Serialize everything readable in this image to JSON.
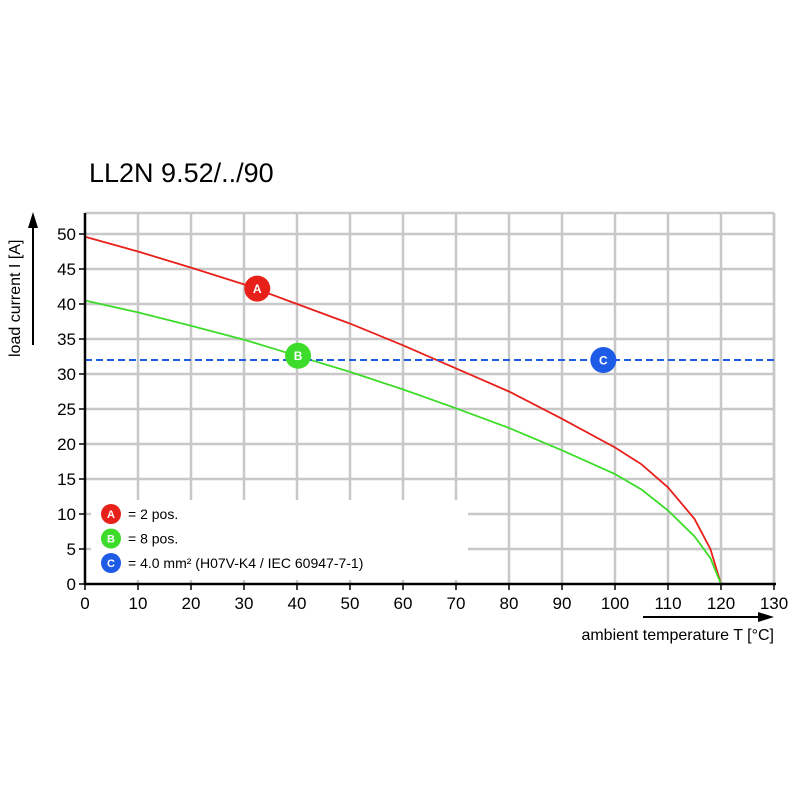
{
  "chart_data": {
    "type": "line",
    "title": "LL2N 9.52/../90",
    "xlabel": "ambient temperature T [°C]",
    "ylabel": "load current I [A]",
    "xlim": [
      0,
      130
    ],
    "ylim": [
      0,
      53
    ],
    "xticks": [
      0,
      10,
      20,
      30,
      40,
      50,
      60,
      70,
      80,
      90,
      100,
      110,
      120,
      130
    ],
    "yticks": [
      0,
      5,
      10,
      15,
      20,
      25,
      30,
      35,
      40,
      45,
      50
    ],
    "grid": true,
    "legend_position": "bottom-left",
    "series": [
      {
        "name": "= 2 pos.",
        "marker": "A",
        "color": "#e8201a",
        "style": "solid",
        "marker_at": [
          32.5,
          42.2
        ],
        "x": [
          0,
          10,
          20,
          30,
          40,
          50,
          60,
          70,
          80,
          90,
          100,
          105,
          110,
          115,
          118,
          120
        ],
        "y": [
          49.6,
          47.5,
          45.2,
          42.8,
          40.0,
          37.2,
          34.1,
          30.8,
          27.5,
          23.6,
          19.5,
          17.1,
          13.8,
          9.3,
          5.0,
          0
        ]
      },
      {
        "name": "= 8 pos.",
        "marker": "B",
        "color": "#3ddc2a",
        "style": "solid",
        "marker_at": [
          40.2,
          32.6
        ],
        "x": [
          0,
          10,
          20,
          30,
          40,
          50,
          60,
          70,
          80,
          90,
          100,
          105,
          110,
          115,
          118,
          120
        ],
        "y": [
          40.5,
          38.8,
          36.9,
          34.9,
          32.6,
          30.3,
          27.8,
          25.1,
          22.3,
          19.1,
          15.7,
          13.5,
          10.5,
          6.8,
          3.7,
          0
        ]
      },
      {
        "name": "= 4.0 mm² (H07V-K4 / IEC 60947-7-1)",
        "marker": "C",
        "color": "#1e5be6",
        "style": "dashed",
        "marker_at": [
          97.8,
          32
        ],
        "x": [
          0,
          130
        ],
        "y": [
          32,
          32
        ]
      }
    ]
  }
}
